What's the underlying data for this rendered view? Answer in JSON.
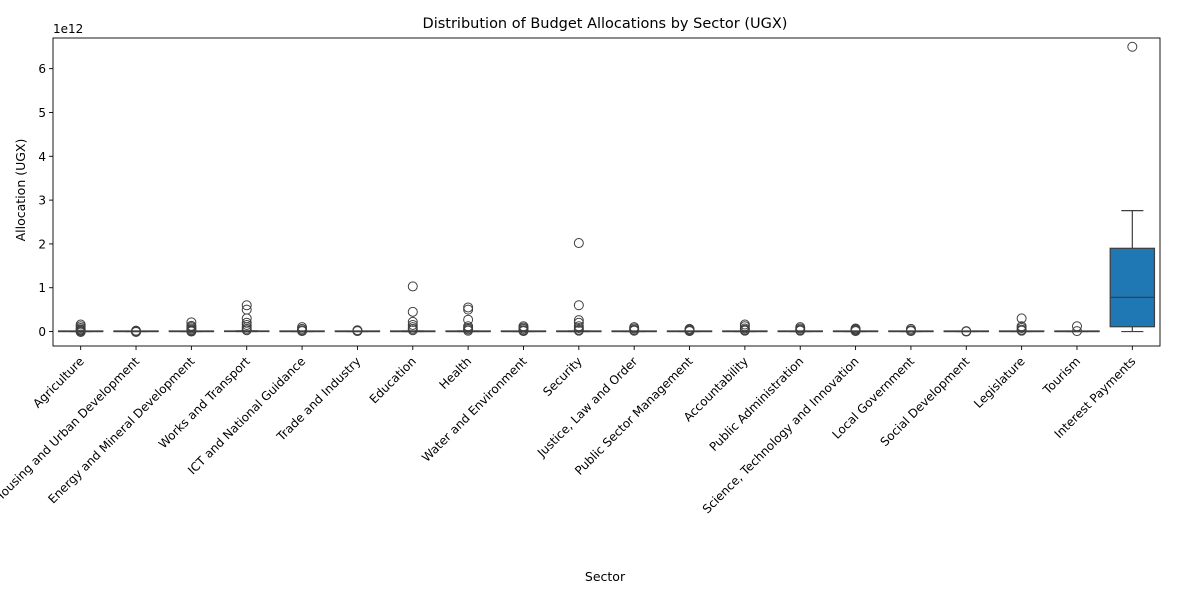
{
  "chart_data": {
    "type": "box",
    "title": "Distribution of Budget Allocations by Sector (UGX)",
    "xlabel": "Sector",
    "ylabel": "Allocation (UGX)",
    "scale_label": "1e12",
    "y_scale": 1000000000000.0,
    "ylim": [
      -0.33,
      6.7
    ],
    "yticks": [
      0,
      1,
      2,
      3,
      4,
      5,
      6
    ],
    "box_color": "#1f77b4",
    "edge_color": "#3f3f3f",
    "categories": [
      "Agriculture",
      "Lands, Housing and Urban Development",
      "Energy and Mineral Development",
      "Works and Transport",
      "ICT and National Guidance",
      "Trade and Industry",
      "Education",
      "Health",
      "Water and Environment",
      "Security",
      "Justice, Law and Order",
      "Public Sector Management",
      "Accountability",
      "Public Administration",
      "Science, Technology and Innovation",
      "Local Government",
      "Social Development",
      "Legislature",
      "Tourism",
      "Interest Payments"
    ],
    "boxes": [
      {
        "q1": 0,
        "median": 0.001,
        "q3": 0.003,
        "whislo": 0,
        "whishi": 0.006,
        "outliers": [
          0.16,
          0.12,
          0.08,
          0.05,
          0.03,
          0.01,
          -0.01
        ]
      },
      {
        "q1": 0,
        "median": 0.001,
        "q3": 0.002,
        "whislo": 0,
        "whishi": 0.004,
        "outliers": [
          0.02,
          0.01,
          0,
          -0.01
        ]
      },
      {
        "q1": 0,
        "median": 0.002,
        "q3": 0.004,
        "whislo": 0,
        "whishi": 0.008,
        "outliers": [
          0.21,
          0.13,
          0.1,
          0.07,
          0.04,
          0.02,
          0
        ]
      },
      {
        "q1": 0,
        "median": 0.003,
        "q3": 0.008,
        "whislo": 0,
        "whishi": 0.015,
        "outliers": [
          0.6,
          0.5,
          0.3,
          0.2,
          0.15,
          0.1,
          0.06,
          0.03
        ]
      },
      {
        "q1": 0,
        "median": 0.001,
        "q3": 0.003,
        "whislo": 0,
        "whishi": 0.006,
        "outliers": [
          0.1,
          0.06,
          0.03,
          0.01
        ]
      },
      {
        "q1": 0,
        "median": 0.001,
        "q3": 0.002,
        "whislo": 0,
        "whishi": 0.004,
        "outliers": [
          0.03,
          0.02,
          0.01
        ]
      },
      {
        "q1": 0,
        "median": 0.002,
        "q3": 0.006,
        "whislo": 0,
        "whishi": 0.012,
        "outliers": [
          1.03,
          0.45,
          0.22,
          0.15,
          0.1,
          0.06,
          0.03
        ]
      },
      {
        "q1": 0,
        "median": 0.002,
        "q3": 0.006,
        "whislo": 0,
        "whishi": 0.012,
        "outliers": [
          0.55,
          0.5,
          0.27,
          0.12,
          0.08,
          0.05,
          0.02
        ]
      },
      {
        "q1": 0,
        "median": 0.001,
        "q3": 0.004,
        "whislo": 0,
        "whishi": 0.008,
        "outliers": [
          0.12,
          0.09,
          0.06,
          0.03,
          0.01
        ]
      },
      {
        "q1": 0,
        "median": 0.002,
        "q3": 0.006,
        "whislo": 0,
        "whishi": 0.012,
        "outliers": [
          2.02,
          0.6,
          0.26,
          0.2,
          0.12,
          0.08,
          0.04,
          0.02
        ]
      },
      {
        "q1": 0,
        "median": 0.001,
        "q3": 0.004,
        "whislo": 0,
        "whishi": 0.008,
        "outliers": [
          0.1,
          0.07,
          0.04,
          0.02
        ]
      },
      {
        "q1": 0,
        "median": 0.001,
        "q3": 0.002,
        "whislo": 0,
        "whishi": 0.004,
        "outliers": [
          0.06,
          0.04,
          0.02,
          0.01
        ]
      },
      {
        "q1": 0,
        "median": 0.002,
        "q3": 0.004,
        "whislo": 0,
        "whishi": 0.008,
        "outliers": [
          0.16,
          0.12,
          0.07,
          0.04,
          0.02
        ]
      },
      {
        "q1": 0,
        "median": 0.001,
        "q3": 0.003,
        "whislo": 0,
        "whishi": 0.006,
        "outliers": [
          0.1,
          0.07,
          0.04,
          0.02
        ]
      },
      {
        "q1": 0,
        "median": 0.001,
        "q3": 0.002,
        "whislo": 0,
        "whishi": 0.004,
        "outliers": [
          0.07,
          0.05,
          0.03,
          0.01
        ]
      },
      {
        "q1": 0,
        "median": 0.001,
        "q3": 0.002,
        "whislo": 0,
        "whishi": 0.004,
        "outliers": [
          0.06,
          0.03,
          0.01
        ]
      },
      {
        "q1": 0,
        "median": 0.0005,
        "q3": 0.001,
        "whislo": 0,
        "whishi": 0.002,
        "outliers": [
          0.01,
          0
        ]
      },
      {
        "q1": 0,
        "median": 0.002,
        "q3": 0.004,
        "whislo": 0,
        "whishi": 0.008,
        "outliers": [
          0.3,
          0.12,
          0.08,
          0.04,
          0.02
        ]
      },
      {
        "q1": 0,
        "median": 0.001,
        "q3": 0.002,
        "whislo": 0,
        "whishi": 0.004,
        "outliers": [
          0.12,
          0.01
        ]
      },
      {
        "q1": 0.11,
        "median": 0.78,
        "q3": 1.9,
        "whislo": 0,
        "whishi": 2.76,
        "outliers": [
          6.5
        ]
      }
    ],
    "grid": false,
    "legend": "none"
  }
}
